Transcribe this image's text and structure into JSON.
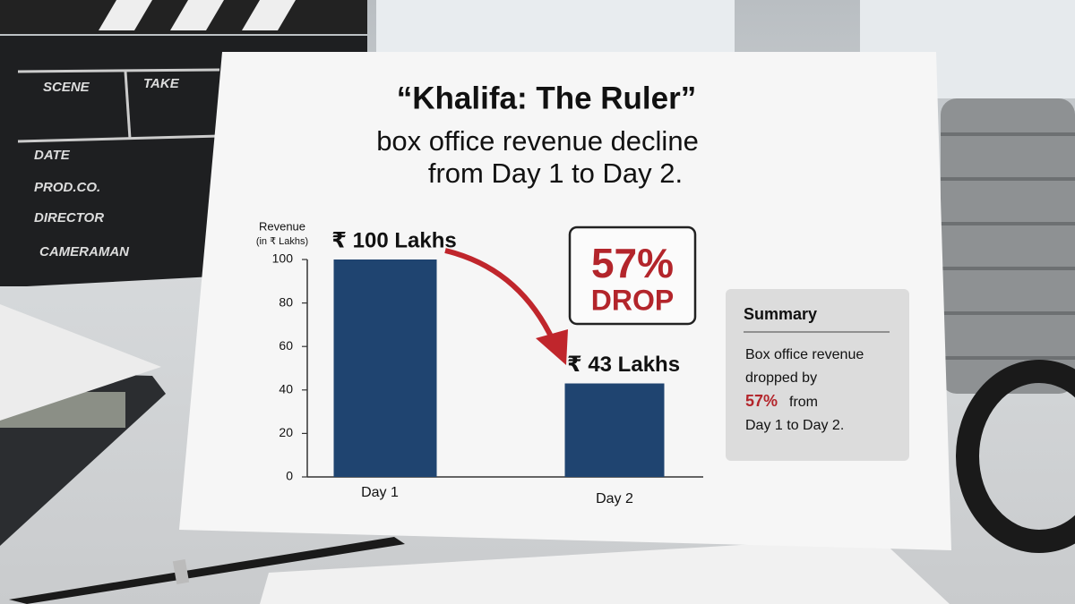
{
  "chart_data": {
    "type": "bar",
    "title": "“Khalifa: The Ruler”",
    "subtitle": [
      "box office revenue decline",
      "from Day 1 to Day 2."
    ],
    "y_label": [
      "Revenue",
      "(in ₹ Lakhs)"
    ],
    "categories": [
      "Day 1",
      "Day 2"
    ],
    "values": [
      100,
      43
    ],
    "value_labels": [
      "₹ 100 Lakhs",
      "₹ 43 Lakhs"
    ],
    "color": "#1f4470",
    "ylim": [
      0,
      100
    ],
    "yticks": [
      0,
      20,
      40,
      60,
      80,
      100
    ],
    "annotation": [
      "57%",
      "DROP"
    ],
    "summary": {
      "title": "Summary",
      "lines": [
        "Box office revenue",
        "dropped by",
        "57%",
        "from",
        "Day 1 to Day 2."
      ]
    }
  }
}
